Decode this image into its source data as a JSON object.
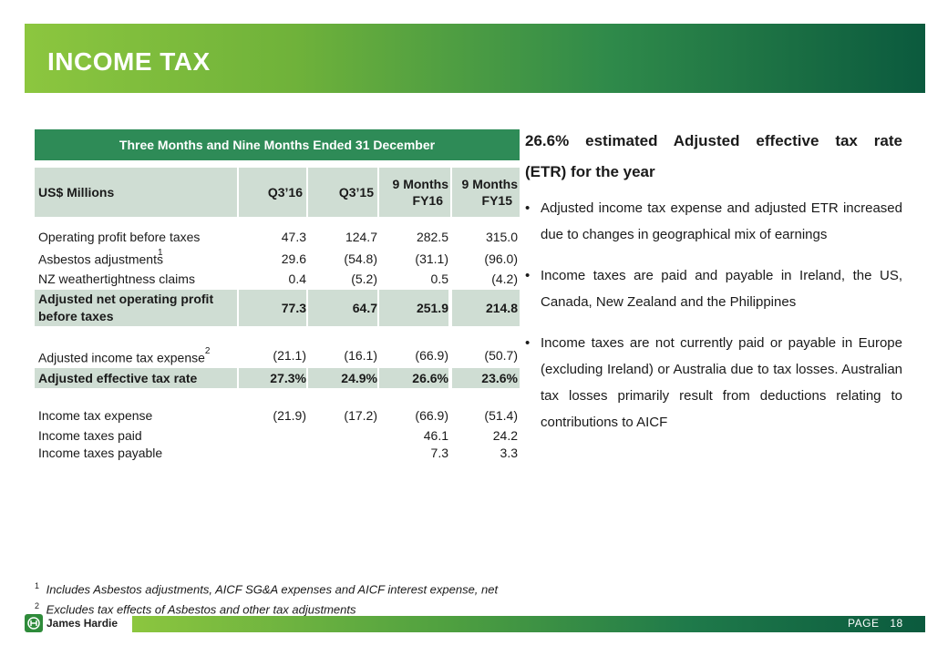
{
  "header": {
    "title": "INCOME TAX"
  },
  "table": {
    "title": "Three Months and Nine Months Ended 31 December",
    "columns": [
      "US$ Millions",
      "Q3’16",
      "Q3’15",
      "9 Months FY16",
      "9 Months FY15"
    ],
    "col_lines": [
      [
        "US$ Millions"
      ],
      [
        "Q3’16"
      ],
      [
        "Q3’15"
      ],
      [
        "9 Months",
        "FY16"
      ],
      [
        "9 Months",
        "FY15"
      ]
    ],
    "rows": [
      {
        "label": "Operating profit before taxes",
        "values": [
          "47.3",
          "124.7",
          "282.5",
          "315.0"
        ]
      },
      {
        "label": "Asbestos adjustments",
        "footnote": "1",
        "values": [
          "29.6",
          "(54.8)",
          "(31.1)",
          "(96.0)"
        ]
      },
      {
        "label": "NZ weathertightness claims",
        "values": [
          "0.4",
          "(5.2)",
          "0.5",
          "(4.2)"
        ]
      },
      {
        "label": "Adjusted net operating profit before taxes",
        "values": [
          "77.3",
          "64.7",
          "251.9",
          "214.8"
        ],
        "highlight": true
      },
      {
        "label": "Adjusted income tax expense",
        "footnote": "2",
        "values": [
          "(21.1)",
          "(16.1)",
          "(66.9)",
          "(50.7)"
        ]
      },
      {
        "label": "Adjusted effective tax rate",
        "values": [
          "27.3%",
          "24.9%",
          "26.6%",
          "23.6%"
        ],
        "highlight": true
      },
      {
        "label": "Income tax expense",
        "values": [
          "(21.9)",
          "(17.2)",
          "(66.9)",
          "(51.4)"
        ]
      },
      {
        "label": "Income taxes paid",
        "values": [
          "",
          "",
          "46.1",
          "24.2"
        ]
      },
      {
        "label": "Income taxes payable",
        "values": [
          "",
          "",
          "7.3",
          "3.3"
        ]
      }
    ],
    "row4_label_lines": [
      "Adjusted net operating profit",
      "before taxes"
    ]
  },
  "summary": {
    "lead_line1": "26.6% estimated Adjusted effective tax rate",
    "lead_line2": "(ETR) for the year",
    "bullets": [
      "Adjusted income tax expense and adjusted ETR increased due to changes in geographical mix of earnings",
      "Income taxes are paid and payable in Ireland, the US, Canada, New Zealand and the Philippines",
      "Income taxes are not currently paid or payable in Europe (excluding Ireland) or Australia due to tax losses. Australian tax losses primarily result from deductions relating to contributions to AICF"
    ]
  },
  "footnotes": [
    {
      "num": "1",
      "text": "Includes Asbestos adjustments, AICF SG&A expenses and AICF interest expense, net"
    },
    {
      "num": "2",
      "text": "Excludes tax effects of Asbestos and other tax adjustments"
    }
  ],
  "footer": {
    "logo_text": "James Hardie",
    "page_label": "PAGE",
    "page_number": "18"
  },
  "colors": {
    "brand_green": "#2e8b57",
    "header_cell": "#cfddd3"
  }
}
